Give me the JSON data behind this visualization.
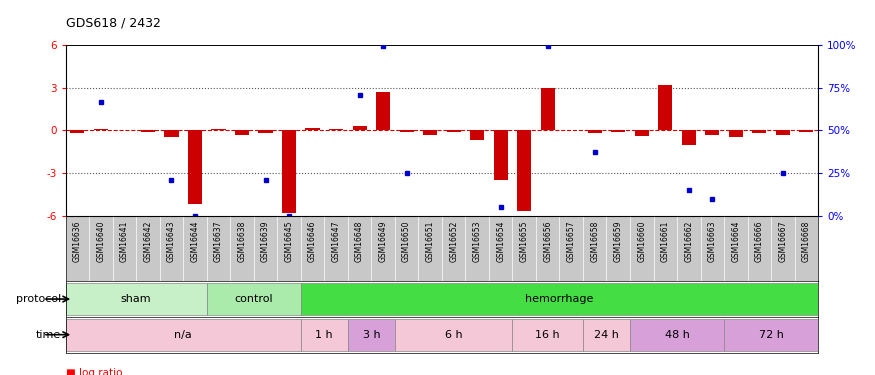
{
  "title": "GDS618 / 2432",
  "samples": [
    "GSM16636",
    "GSM16640",
    "GSM16641",
    "GSM16642",
    "GSM16643",
    "GSM16644",
    "GSM16637",
    "GSM16638",
    "GSM16639",
    "GSM16645",
    "GSM16646",
    "GSM16647",
    "GSM16648",
    "GSM16649",
    "GSM16650",
    "GSM16651",
    "GSM16652",
    "GSM16653",
    "GSM16654",
    "GSM16655",
    "GSM16656",
    "GSM16657",
    "GSM16658",
    "GSM16659",
    "GSM16660",
    "GSM16661",
    "GSM16662",
    "GSM16663",
    "GSM16664",
    "GSM16666",
    "GSM16667",
    "GSM16668"
  ],
  "log_ratio": [
    -0.2,
    0.1,
    0.05,
    -0.1,
    -0.5,
    -5.2,
    0.1,
    -0.35,
    -0.2,
    -5.8,
    0.15,
    0.1,
    0.3,
    2.7,
    -0.1,
    -0.3,
    -0.1,
    -0.7,
    -3.5,
    -5.7,
    3.0,
    0.05,
    -0.2,
    -0.15,
    -0.4,
    3.2,
    -1.0,
    -0.3,
    -0.5,
    -0.2,
    -0.3,
    -0.1
  ],
  "percentile_left_axis": [
    null,
    2.0,
    null,
    null,
    -3.5,
    -6.0,
    null,
    null,
    -3.5,
    -6.0,
    null,
    null,
    2.5,
    5.9,
    -3.0,
    null,
    null,
    null,
    -5.4,
    null,
    5.9,
    null,
    -1.5,
    null,
    null,
    null,
    -4.2,
    -4.8,
    null,
    null,
    -3.0,
    null
  ],
  "protocol_groups": [
    {
      "label": "sham",
      "start": 0,
      "end": 5,
      "color": "#C8F0C8"
    },
    {
      "label": "control",
      "start": 6,
      "end": 9,
      "color": "#AAEAAA"
    },
    {
      "label": "hemorrhage",
      "start": 10,
      "end": 31,
      "color": "#44DD44"
    }
  ],
  "time_groups": [
    {
      "label": "n/a",
      "start": 0,
      "end": 9,
      "color": "#F5C8D8"
    },
    {
      "label": "1 h",
      "start": 10,
      "end": 11,
      "color": "#F5C8D8"
    },
    {
      "label": "3 h",
      "start": 12,
      "end": 13,
      "color": "#D8A0D8"
    },
    {
      "label": "6 h",
      "start": 14,
      "end": 18,
      "color": "#F5C8D8"
    },
    {
      "label": "16 h",
      "start": 19,
      "end": 21,
      "color": "#F5C8D8"
    },
    {
      "label": "24 h",
      "start": 22,
      "end": 23,
      "color": "#F5C8D8"
    },
    {
      "label": "48 h",
      "start": 24,
      "end": 27,
      "color": "#D8A0D8"
    },
    {
      "label": "72 h",
      "start": 28,
      "end": 31,
      "color": "#D8A0D8"
    }
  ],
  "ylim": [
    -6,
    6
  ],
  "yticks": [
    -6,
    -3,
    0,
    3,
    6
  ],
  "bar_color": "#CC0000",
  "dot_color": "#0000CC",
  "hline_color": "#CC0000",
  "dotted_color": "#555555",
  "bg_color": "#C8C8C8"
}
